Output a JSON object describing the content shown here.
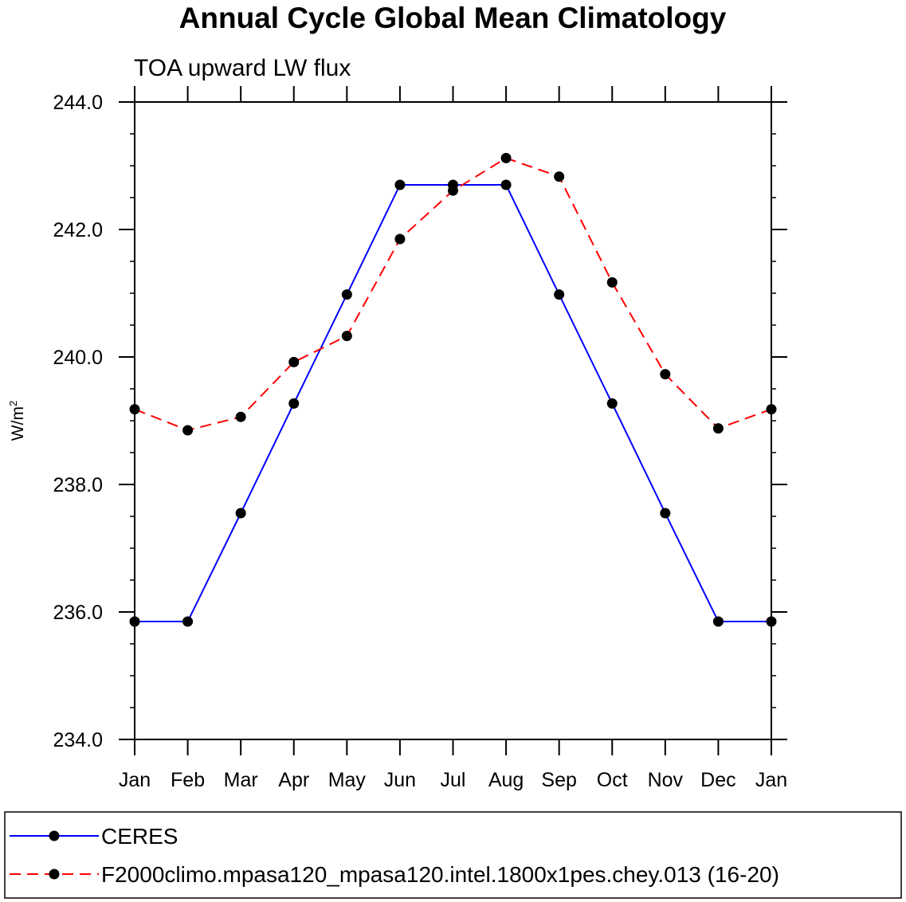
{
  "chart_data": {
    "type": "line",
    "title": "Annual Cycle Global Mean Climatology",
    "subtitle": "TOA upward LW flux",
    "xlabel": "",
    "ylabel": "W/m",
    "ylabel_sup": "2",
    "categories": [
      "Jan",
      "Feb",
      "Mar",
      "Apr",
      "May",
      "Jun",
      "Jul",
      "Aug",
      "Sep",
      "Oct",
      "Nov",
      "Dec",
      "Jan"
    ],
    "ylim": [
      234.0,
      244.0
    ],
    "yticks": [
      "234.0",
      "236.0",
      "238.0",
      "240.0",
      "242.0",
      "244.0"
    ],
    "series": [
      {
        "name": "CERES",
        "color": "#0000ff",
        "dash": "solid",
        "values": [
          235.85,
          235.85,
          237.55,
          239.27,
          240.98,
          242.7,
          242.7,
          242.7,
          240.98,
          239.27,
          237.55,
          235.85,
          235.85
        ]
      },
      {
        "name": "F2000climo.mpasa120_mpasa120.intel.1800x1pes.chey.013 (16-20)",
        "color": "#ff0000",
        "dash": "dashed",
        "values": [
          239.18,
          238.85,
          239.06,
          239.92,
          240.33,
          241.85,
          242.61,
          243.12,
          242.83,
          241.17,
          239.73,
          238.88,
          239.18
        ]
      }
    ],
    "marker_color": "#000000",
    "legend_position": "bottom"
  }
}
